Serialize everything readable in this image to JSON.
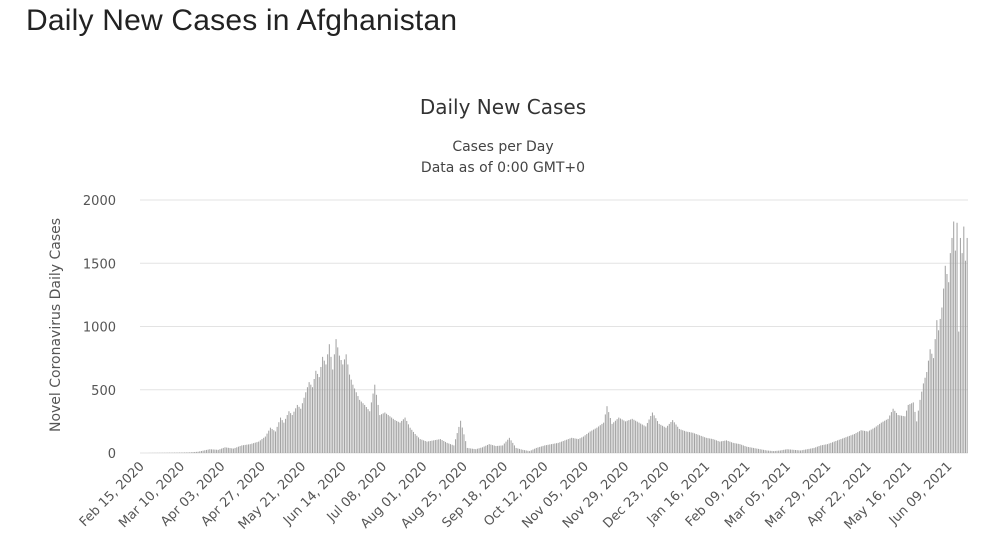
{
  "page": {
    "heading": "Daily New Cases in Afghanistan"
  },
  "chart_data": {
    "type": "bar",
    "title": "Daily New Cases",
    "subtitle_lines": [
      "Cases per Day",
      "Data as of 0:00 GMT+0"
    ],
    "ylabel": "Novel Coronavirus Daily Cases",
    "xlabel": "",
    "ylim": [
      0,
      2000
    ],
    "yticks": [
      0,
      500,
      1000,
      1500,
      2000
    ],
    "grid": true,
    "legend": "none",
    "bar_color": "#a3a3a3",
    "x_start": "2020-02-15",
    "x_end": "2021-06-20",
    "x_tick_labels": [
      "Feb 15, 2020",
      "Mar 10, 2020",
      "Apr 03, 2020",
      "Apr 27, 2020",
      "May 21, 2020",
      "Jun 14, 2020",
      "Jul 08, 2020",
      "Aug 01, 2020",
      "Aug 25, 2020",
      "Sep 18, 2020",
      "Oct 12, 2020",
      "Nov 05, 2020",
      "Nov 29, 2020",
      "Dec 23, 2020",
      "Jan 16, 2021",
      "Feb 09, 2021",
      "Mar 05, 2021",
      "Mar 29, 2021",
      "Apr 22, 2021",
      "May 16, 2021",
      "Jun 09, 2021"
    ],
    "series": [
      {
        "points": [
          [
            "2020-02-15",
            0
          ],
          [
            "2020-02-24",
            1
          ],
          [
            "2020-03-07",
            3
          ],
          [
            "2020-03-15",
            5
          ],
          [
            "2020-03-20",
            10
          ],
          [
            "2020-03-27",
            30
          ],
          [
            "2020-04-01",
            25
          ],
          [
            "2020-04-05",
            45
          ],
          [
            "2020-04-10",
            35
          ],
          [
            "2020-04-15",
            60
          ],
          [
            "2020-04-20",
            70
          ],
          [
            "2020-04-25",
            90
          ],
          [
            "2020-04-29",
            130
          ],
          [
            "2020-05-02",
            200
          ],
          [
            "2020-05-05",
            170
          ],
          [
            "2020-05-08",
            280
          ],
          [
            "2020-05-10",
            240
          ],
          [
            "2020-05-13",
            330
          ],
          [
            "2020-05-15",
            300
          ],
          [
            "2020-05-18",
            380
          ],
          [
            "2020-05-20",
            350
          ],
          [
            "2020-05-23",
            480
          ],
          [
            "2020-05-25",
            560
          ],
          [
            "2020-05-27",
            520
          ],
          [
            "2020-05-29",
            650
          ],
          [
            "2020-05-31",
            600
          ],
          [
            "2020-06-02",
            760
          ],
          [
            "2020-06-04",
            700
          ],
          [
            "2020-06-06",
            860
          ],
          [
            "2020-06-08",
            660
          ],
          [
            "2020-06-10",
            900
          ],
          [
            "2020-06-12",
            770
          ],
          [
            "2020-06-14",
            700
          ],
          [
            "2020-06-16",
            780
          ],
          [
            "2020-06-18",
            620
          ],
          [
            "2020-06-20",
            540
          ],
          [
            "2020-06-22",
            480
          ],
          [
            "2020-06-24",
            420
          ],
          [
            "2020-06-27",
            380
          ],
          [
            "2020-06-30",
            330
          ],
          [
            "2020-07-03",
            540
          ],
          [
            "2020-07-06",
            300
          ],
          [
            "2020-07-09",
            320
          ],
          [
            "2020-07-12",
            290
          ],
          [
            "2020-07-15",
            260
          ],
          [
            "2020-07-18",
            240
          ],
          [
            "2020-07-21",
            280
          ],
          [
            "2020-07-24",
            200
          ],
          [
            "2020-07-27",
            150
          ],
          [
            "2020-07-30",
            110
          ],
          [
            "2020-08-03",
            90
          ],
          [
            "2020-08-07",
            100
          ],
          [
            "2020-08-11",
            110
          ],
          [
            "2020-08-15",
            80
          ],
          [
            "2020-08-19",
            60
          ],
          [
            "2020-08-23",
            255
          ],
          [
            "2020-08-27",
            40
          ],
          [
            "2020-09-01",
            30
          ],
          [
            "2020-09-05",
            45
          ],
          [
            "2020-09-09",
            70
          ],
          [
            "2020-09-13",
            55
          ],
          [
            "2020-09-17",
            60
          ],
          [
            "2020-09-21",
            120
          ],
          [
            "2020-09-25",
            40
          ],
          [
            "2020-09-29",
            25
          ],
          [
            "2020-10-03",
            15
          ],
          [
            "2020-10-07",
            40
          ],
          [
            "2020-10-12",
            60
          ],
          [
            "2020-10-16",
            70
          ],
          [
            "2020-10-20",
            80
          ],
          [
            "2020-10-24",
            100
          ],
          [
            "2020-10-28",
            120
          ],
          [
            "2020-11-01",
            110
          ],
          [
            "2020-11-04",
            130
          ],
          [
            "2020-11-08",
            170
          ],
          [
            "2020-11-12",
            200
          ],
          [
            "2020-11-16",
            240
          ],
          [
            "2020-11-18",
            370
          ],
          [
            "2020-11-21",
            230
          ],
          [
            "2020-11-25",
            280
          ],
          [
            "2020-11-29",
            250
          ],
          [
            "2020-12-03",
            270
          ],
          [
            "2020-12-07",
            240
          ],
          [
            "2020-12-11",
            210
          ],
          [
            "2020-12-15",
            320
          ],
          [
            "2020-12-19",
            230
          ],
          [
            "2020-12-23",
            200
          ],
          [
            "2020-12-27",
            260
          ],
          [
            "2020-12-31",
            190
          ],
          [
            "2021-01-04",
            170
          ],
          [
            "2021-01-08",
            160
          ],
          [
            "2021-01-12",
            140
          ],
          [
            "2021-01-16",
            120
          ],
          [
            "2021-01-20",
            110
          ],
          [
            "2021-01-24",
            90
          ],
          [
            "2021-01-28",
            100
          ],
          [
            "2021-02-01",
            80
          ],
          [
            "2021-02-05",
            70
          ],
          [
            "2021-02-09",
            50
          ],
          [
            "2021-02-13",
            40
          ],
          [
            "2021-02-17",
            30
          ],
          [
            "2021-02-21",
            20
          ],
          [
            "2021-02-25",
            15
          ],
          [
            "2021-03-01",
            20
          ],
          [
            "2021-03-05",
            30
          ],
          [
            "2021-03-09",
            25
          ],
          [
            "2021-03-13",
            20
          ],
          [
            "2021-03-17",
            30
          ],
          [
            "2021-03-21",
            40
          ],
          [
            "2021-03-25",
            60
          ],
          [
            "2021-03-29",
            70
          ],
          [
            "2021-04-02",
            90
          ],
          [
            "2021-04-06",
            110
          ],
          [
            "2021-04-10",
            130
          ],
          [
            "2021-04-14",
            150
          ],
          [
            "2021-04-18",
            180
          ],
          [
            "2021-04-22",
            170
          ],
          [
            "2021-04-26",
            200
          ],
          [
            "2021-04-30",
            240
          ],
          [
            "2021-05-04",
            270
          ],
          [
            "2021-05-07",
            350
          ],
          [
            "2021-05-10",
            300
          ],
          [
            "2021-05-14",
            290
          ],
          [
            "2021-05-16",
            380
          ],
          [
            "2021-05-19",
            400
          ],
          [
            "2021-05-21",
            250
          ],
          [
            "2021-05-23",
            420
          ],
          [
            "2021-05-25",
            550
          ],
          [
            "2021-05-27",
            640
          ],
          [
            "2021-05-29",
            820
          ],
          [
            "2021-05-31",
            750
          ],
          [
            "2021-06-02",
            1050
          ],
          [
            "2021-06-03",
            970
          ],
          [
            "2021-06-05",
            1150
          ],
          [
            "2021-06-06",
            1300
          ],
          [
            "2021-06-07",
            1480
          ],
          [
            "2021-06-09",
            1350
          ],
          [
            "2021-06-10",
            1580
          ],
          [
            "2021-06-11",
            1700
          ],
          [
            "2021-06-12",
            1830
          ],
          [
            "2021-06-13",
            1600
          ],
          [
            "2021-06-14",
            1820
          ],
          [
            "2021-06-15",
            960
          ],
          [
            "2021-06-16",
            1700
          ],
          [
            "2021-06-17",
            1580
          ],
          [
            "2021-06-18",
            1790
          ],
          [
            "2021-06-19",
            1520
          ],
          [
            "2021-06-20",
            1700
          ]
        ]
      }
    ]
  }
}
